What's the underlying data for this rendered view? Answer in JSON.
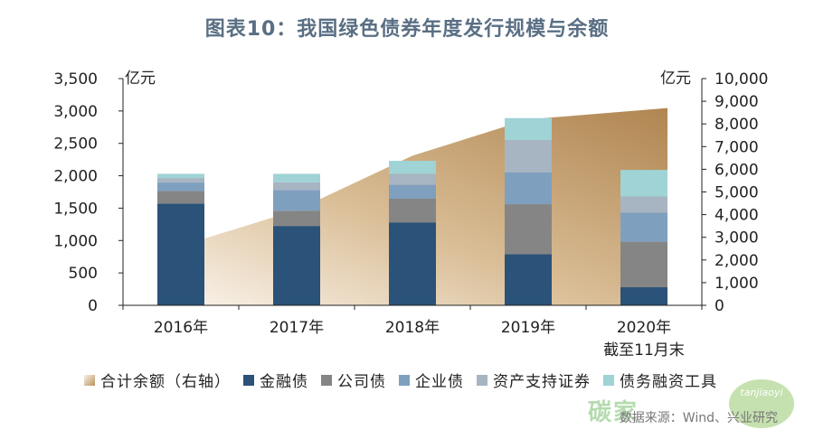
{
  "title": "图表10：我国绿色债券年度发行规模与余额",
  "unit_left": "亿元",
  "unit_right": "亿元",
  "x_sublabel": "截至11月末",
  "source": "数据来源：Wind、兴业研究",
  "watermark": {
    "text": "碳家",
    "badge": "tanjiaoyi"
  },
  "colors": {
    "area_dark": "#b8925f",
    "area_light": "#f7eee3",
    "series": [
      "#2b5278",
      "#858585",
      "#7f9fbf",
      "#a7b5c2",
      "#9fd3d6"
    ]
  },
  "chart_data": {
    "type": "bar",
    "stacked": true,
    "categories": [
      "2016年",
      "2017年",
      "2018年",
      "2019年",
      "2020年"
    ],
    "series": [
      {
        "name": "金融债",
        "values": [
          1570,
          1225,
          1280,
          790,
          280
        ]
      },
      {
        "name": "公司债",
        "values": [
          195,
          235,
          365,
          770,
          700
        ]
      },
      {
        "name": "企业债",
        "values": [
          130,
          320,
          215,
          490,
          450
        ]
      },
      {
        "name": "资产支持证券",
        "values": [
          70,
          120,
          170,
          500,
          250
        ]
      },
      {
        "name": "债务融资工具",
        "values": [
          65,
          130,
          200,
          340,
          410
        ]
      }
    ],
    "line_series": {
      "name": "合计余额（右轴）",
      "type": "area",
      "values": [
        2300,
        4200,
        6600,
        8200,
        8700
      ]
    },
    "y_left": {
      "min": 0,
      "max": 3500,
      "ticks": [
        "0",
        "500",
        "1,000",
        "1,500",
        "2,000",
        "2,500",
        "3,000",
        "3,500"
      ]
    },
    "y_right": {
      "min": 0,
      "max": 10000,
      "ticks": [
        "0",
        "1,000",
        "2,000",
        "3,000",
        "4,000",
        "5,000",
        "6,000",
        "7,000",
        "8,000",
        "9,000",
        "10,000"
      ]
    },
    "legend": [
      "合计余额（右轴）",
      "金融债",
      "公司债",
      "企业债",
      "资产支持证券",
      "债务融资工具"
    ]
  }
}
